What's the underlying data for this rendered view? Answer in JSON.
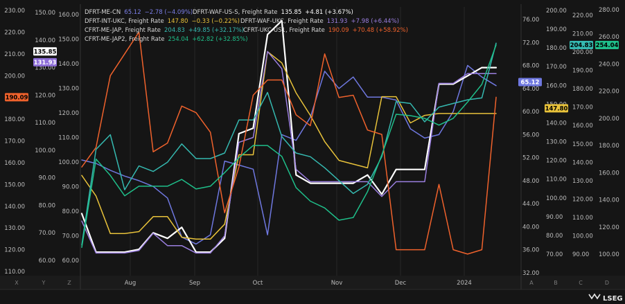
{
  "brand": "LSEG",
  "chart_data": {
    "type": "line",
    "x_ticks": [
      "Aug",
      "Sep",
      "Oct",
      "Nov",
      "Dec",
      "2024"
    ],
    "axis_letters": [
      "X",
      "Y",
      "Z",
      "A",
      "B",
      "C",
      "D"
    ],
    "axes": {
      "X": {
        "ticks": [
          "110.00",
          "120.00",
          "130.00",
          "140.00",
          "150.00",
          "160.00",
          "170.00",
          "180.00",
          "190.00",
          "200.00",
          "210.00",
          "220.00",
          "230.00"
        ]
      },
      "Y": {
        "ticks": [
          "60.00",
          "70.00",
          "80.00",
          "90.00",
          "100.00",
          "110.00",
          "120.00",
          "130.00",
          "140.00",
          "150.00"
        ]
      },
      "Z": {
        "ticks": [
          "60.00",
          "70.00",
          "80.00",
          "90.00",
          "100.00",
          "110.00",
          "120.00",
          "130.00",
          "140.00",
          "150.00",
          "160.00"
        ]
      },
      "A": {
        "ticks": [
          "32.00",
          "36.00",
          "40.00",
          "44.00",
          "48.00",
          "52.00",
          "56.00",
          "60.00",
          "64.00",
          "68.00",
          "72.00",
          "76.00"
        ]
      },
      "B": {
        "ticks": [
          "70.00",
          "80.00",
          "90.00",
          "100.00",
          "110.00",
          "120.00",
          "130.00",
          "140.00",
          "150.00",
          "160.00",
          "170.00",
          "180.00",
          "190.00",
          "200.00"
        ]
      },
      "C": {
        "ticks": [
          "90.00",
          "100.00",
          "110.00",
          "120.00",
          "130.00",
          "140.00",
          "150.00",
          "160.00",
          "170.00",
          "180.00",
          "190.00",
          "200.00",
          "210.00",
          "220.00"
        ]
      },
      "D": {
        "ticks": [
          "100.00",
          "120.00",
          "140.00",
          "160.00",
          "180.00",
          "200.00",
          "220.00",
          "240.00",
          "260.00",
          "280.00"
        ]
      }
    },
    "legend": [
      {
        "name": "DFRT-ME-CN",
        "value": "65.12",
        "change": "−2.78 (−4.09%)",
        "color": "#7b7fe8"
      },
      {
        "name": "DFRT-WAF-US-S, Freight Rate",
        "value": "135.85",
        "change": "+4.81 (+3.67%)",
        "color": "#ffffff"
      },
      {
        "name": "DFRT-INT-UKC, Freight Rate",
        "value": "147.80",
        "change": "−0.33 (−0.22%)",
        "color": "#e8c23a"
      },
      {
        "name": "DFRT-WAF-UKC, Freight Rate",
        "value": "131.93",
        "change": "+7.98 (+6.44%)",
        "color": "#9b7fe0"
      },
      {
        "name": "CFRT-ME-JAP, Freight Rate",
        "value": "204.83",
        "change": "+49.85 (+32.17%)",
        "color": "#35b9b0"
      },
      {
        "name": "CFRT-UKC-US1, Freight Rate",
        "value": "190.09",
        "change": "+70.48 (+58.92%)",
        "color": "#f0622c"
      },
      {
        "name": "CFRT-ME-JAP2, Freight Rate",
        "value": "254.04",
        "change": "+62.82 (+32.85%)",
        "color": "#1fbf8a"
      }
    ],
    "series": [
      {
        "name": "DFRT-ME-CN",
        "axis": "A",
        "color": "#6f78e0",
        "values": [
          51.6,
          51,
          49.8,
          48.8,
          48,
          47,
          45,
          38.2,
          37,
          38.6,
          51.4,
          50.7,
          50,
          38.6,
          56,
          55,
          59,
          67,
          64,
          66,
          62.5,
          62.5,
          62,
          57,
          55.4,
          56,
          60,
          68,
          66,
          64.5
        ]
      },
      {
        "name": "DFRT-WAF-US-S, Freight Rate",
        "axis": "Y",
        "color": "#ffffff",
        "values": [
          77,
          63,
          63,
          63,
          64,
          70,
          68,
          72,
          63,
          63,
          68,
          106,
          108,
          142,
          147,
          91,
          88,
          88,
          88,
          88,
          91,
          84,
          93,
          93,
          93,
          124,
          124,
          127,
          130,
          130
        ]
      },
      {
        "name": "DFRT-INT-UKC, Freight Rate",
        "axis": "B",
        "color": "#e8c23a",
        "values": [
          112,
          101,
          81,
          81,
          82,
          90,
          90,
          79,
          78,
          78,
          86,
          123,
          123,
          178,
          172,
          156,
          144,
          130,
          120,
          118,
          116,
          154,
          154,
          140,
          144,
          145,
          145,
          145,
          145,
          145
        ]
      },
      {
        "name": "DFRT-WAF-UKC, Freight Rate",
        "axis": "Z",
        "color": "#9b7fe0",
        "values": [
          76,
          63,
          63,
          63,
          64,
          71,
          66,
          66,
          63,
          63,
          70,
          108,
          110,
          145,
          138,
          97,
          92,
          92,
          92,
          92,
          92,
          86,
          92,
          92,
          92,
          132,
          132,
          136,
          136,
          136
        ]
      },
      {
        "name": "CFRT-ME-JAP, Freight Rate",
        "axis": "C",
        "color": "#35b9b0",
        "values": [
          95,
          147,
          155,
          125,
          138,
          135,
          140,
          150,
          142,
          142,
          145,
          163,
          163,
          178,
          154,
          145,
          143,
          137,
          130,
          123,
          128,
          143,
          173,
          172,
          162,
          170,
          172,
          174,
          175,
          204.83
        ]
      },
      {
        "name": "CFRT-UKC-US1, Freight Rate",
        "axis": "X",
        "color": "#f0622c",
        "values": [
          158,
          167,
          200,
          210,
          220,
          165,
          169,
          186,
          183,
          174,
          137,
          158,
          191,
          198,
          198,
          182,
          177,
          210,
          190,
          191,
          175,
          173,
          120,
          120,
          120,
          150,
          120,
          118,
          120,
          190.09
        ]
      },
      {
        "name": "CFRT-ME-JAP2, Freight Rate",
        "axis": "D",
        "color": "#1fbf8a",
        "values": [
          105,
          170,
          158,
          143,
          150,
          150,
          150,
          155,
          148,
          150,
          160,
          171,
          180,
          180,
          172,
          149,
          139,
          134,
          125,
          127,
          146,
          173,
          203,
          202,
          200,
          195,
          200,
          212,
          225,
          254.04
        ]
      }
    ],
    "badges": [
      {
        "text": "131.93",
        "axis": "Y",
        "value": 131.93,
        "bg": "#8e6ed8",
        "fg": "#ffffff"
      },
      {
        "text": "135.85",
        "axis": "Y",
        "value": 135.85,
        "bg": "#ffffff",
        "fg": "#000000"
      },
      {
        "text": "190.09",
        "axis": "X",
        "value": 190.09,
        "bg": "#f0622c",
        "fg": "#000000"
      },
      {
        "text": "65.12",
        "axis": "A",
        "value": 65.12,
        "bg": "#6f78e0",
        "fg": "#ffffff"
      },
      {
        "text": "147.80",
        "axis": "B",
        "value": 147.8,
        "bg": "#e8c23a",
        "fg": "#000000"
      },
      {
        "text": "204.83",
        "axis": "C",
        "value": 204.83,
        "bg": "#35b9b0",
        "fg": "#000000"
      },
      {
        "text": "254.04",
        "axis": "D",
        "value": 254.04,
        "bg": "#1fbf8a",
        "fg": "#000000"
      }
    ]
  }
}
